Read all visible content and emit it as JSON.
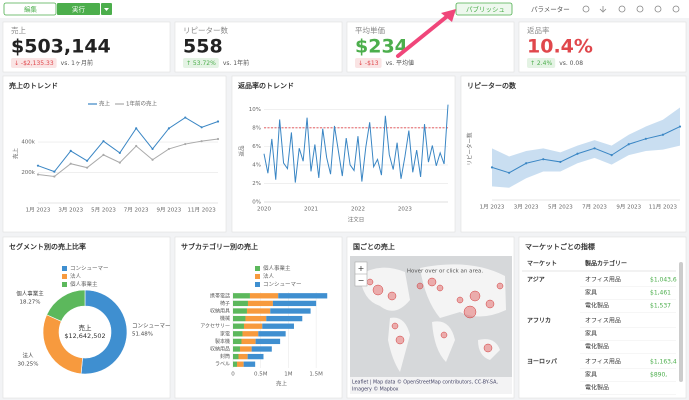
{
  "toolbar": {
    "edit": "編集",
    "run": "実行",
    "publish": "パブリッシュ",
    "parameters": "パラメーター"
  },
  "kpis": [
    {
      "label": "売上",
      "value": "$503,144",
      "value_color": "#222222",
      "delta": "↓ -$2,135.33",
      "delta_color": "#e0474c",
      "compare": "vs. 1ヶ月前"
    },
    {
      "label": "リピーター数",
      "value": "558",
      "value_color": "#222222",
      "delta": "↑ 53.72%",
      "delta_color": "#4cae4c",
      "compare": "vs. 1年前"
    },
    {
      "label": "平均単価",
      "value": "$234",
      "value_color": "#4cae4c",
      "delta": "↓ -$13",
      "delta_color": "#e0474c",
      "compare": "vs. 平均値"
    },
    {
      "label": "返品率",
      "value": "10.4%",
      "value_color": "#e0474c",
      "delta": "↑ 2.4%",
      "delta_color": "#4cae4c",
      "compare": "vs. 0.08"
    }
  ],
  "chart_data": [
    {
      "type": "line",
      "title": "売上のトレンド",
      "ylabel": "売上",
      "legend": true,
      "grid": true,
      "markers": true,
      "categories": [
        "1月 2023",
        null,
        "3月 2023",
        null,
        "5月 2023",
        null,
        "7月 2023",
        null,
        "9月 2023",
        null,
        "11月 2023",
        null
      ],
      "series": [
        {
          "name": "売上",
          "color": "#3a86c4",
          "values": [
            245000,
            206000,
            342000,
            277000,
            406000,
            329000,
            490000,
            355000,
            490000,
            561000,
            497000,
            535000
          ]
        },
        {
          "name": "1年前の売上",
          "color": "#aaaaaa",
          "values": [
            187000,
            174000,
            258000,
            232000,
            316000,
            265000,
            374000,
            284000,
            355000,
            387000,
            406000,
            420000
          ]
        }
      ],
      "ylim": [
        0,
        650000
      ],
      "yticks": [
        {
          "value": 200000,
          "label": "200k"
        },
        {
          "value": 400000,
          "label": "400k"
        }
      ]
    },
    {
      "type": "line",
      "title": "返品率のトレンド",
      "ylabel": "返品",
      "xlabel": "注文日",
      "grid": true,
      "color": "#3a86c4",
      "reference_line": 8,
      "reference_color": "#e0474c",
      "categories": [
        "2020",
        null,
        null,
        null,
        null,
        null,
        null,
        null,
        null,
        null,
        null,
        null,
        "2021",
        null,
        null,
        null,
        null,
        null,
        null,
        null,
        null,
        null,
        null,
        null,
        "2022",
        null,
        null,
        null,
        null,
        null,
        null,
        null,
        null,
        null,
        null,
        null,
        "2023",
        null,
        null,
        null,
        null,
        null,
        null,
        null,
        null,
        null,
        null,
        null
      ],
      "values": [
        5.2,
        3.1,
        6.8,
        2.4,
        8.9,
        4.2,
        3.6,
        7.5,
        2.1,
        5.8,
        4.4,
        9.1,
        3.3,
        6.2,
        2.6,
        7.9,
        4.8,
        3.0,
        8.2,
        5.5,
        2.8,
        6.9,
        4.0,
        3.4,
        7.1,
        2.2,
        5.9,
        8.6,
        3.8,
        4.6,
        2.9,
        9.3,
        5.1,
        3.5,
        6.4,
        2.5,
        4.9,
        7.7,
        3.2,
        5.6,
        2.7,
        8.4,
        4.3,
        6.1,
        3.9,
        5.3,
        4.1,
        10.5
      ],
      "ylim": [
        0,
        11
      ],
      "yticks": [
        {
          "value": 0,
          "label": "0%"
        },
        {
          "value": 2,
          "label": "2%"
        },
        {
          "value": 4,
          "label": "4%"
        },
        {
          "value": 6,
          "label": "6%"
        },
        {
          "value": 8,
          "label": "8%"
        },
        {
          "value": 10,
          "label": "10%"
        }
      ]
    },
    {
      "type": "line",
      "title": "リピーターの数",
      "ylabel": "リピーター数",
      "grid": false,
      "markers": true,
      "color": "#3a86c4",
      "band_color": "#9cc3e6",
      "categories": [
        "1月 2023",
        null,
        "3月 2023",
        null,
        "5月 2023",
        null,
        "7月 2023",
        null,
        "9月 2023",
        null,
        "11月 2023",
        null
      ],
      "values": [
        24,
        20,
        27,
        30,
        28,
        34,
        38,
        33,
        41,
        45,
        48,
        54
      ],
      "ci_upper": [
        38,
        32,
        36,
        38,
        35,
        40,
        44,
        40,
        48,
        54,
        59,
        68
      ],
      "ci_lower": [
        10,
        9,
        16,
        21,
        21,
        27,
        31,
        26,
        33,
        36,
        37,
        40
      ],
      "ylim": [
        0,
        75
      ]
    },
    {
      "type": "pie",
      "title": "セグメント別の売上比率",
      "center_label": "売上",
      "center_value": "$12,642,502",
      "categories": [
        "コンシューマー",
        "法人",
        "個人事業主"
      ],
      "values": [
        51.48,
        30.25,
        18.27
      ],
      "value_labels": [
        "51.48%",
        "30.25%",
        "18.27%"
      ],
      "colors": [
        "#3f8fd0",
        "#f79a3e",
        "#5cb85c"
      ]
    },
    {
      "type": "barh",
      "title": "サブカテゴリー別の売上",
      "xlabel": "売上",
      "grid": true,
      "categories": [
        "携帯電話",
        "椅子",
        "収納用具",
        "機械",
        "アクセサリー",
        "家電",
        "製本機",
        "収納用品",
        "封筒",
        "ラベル"
      ],
      "series": [
        {
          "name": "個人事業主",
          "color": "#5cb85c",
          "values": [
            306000,
            270000,
            252000,
            225000,
            198000,
            171000,
            153000,
            126000,
            99000,
            72000
          ]
        },
        {
          "name": "法人",
          "color": "#f79a3e",
          "values": [
            510000,
            450000,
            420000,
            375000,
            330000,
            285000,
            255000,
            210000,
            165000,
            120000
          ]
        },
        {
          "name": "コンシューマー",
          "color": "#3f8fd0",
          "values": [
            884000,
            780000,
            728000,
            650000,
            572000,
            494000,
            442000,
            364000,
            286000,
            208000
          ]
        }
      ],
      "xlim": [
        0,
        1750000
      ],
      "xticks": [
        0,
        {
          "value": 500000,
          "label": "0.5M"
        },
        {
          "value": 1000000,
          "label": "1M"
        },
        {
          "value": 1500000,
          "label": "1.5M"
        }
      ]
    }
  ],
  "map": {
    "title": "国ごとの売上",
    "zoom_in": "+",
    "zoom_out": "−",
    "hint": "Hover over or click an area.",
    "attribution": "Leaflet | Map data © OpenStreetMap contributors, CC-BY-SA,",
    "imagery": "Imagery © Mapbox"
  },
  "table": {
    "title": "マーケットごとの指標",
    "columns": [
      "マーケット",
      "製品カテゴリー"
    ],
    "groups": [
      {
        "market": "アジア",
        "rows": [
          [
            "オフィス用品",
            "$1,043,6"
          ],
          [
            "家具",
            "$1,461"
          ],
          [
            "電化製品",
            "$1,537"
          ]
        ]
      },
      {
        "market": "アフリカ",
        "rows": [
          [
            "オフィス用品"
          ],
          [
            "家具"
          ],
          [
            "電化製品"
          ]
        ]
      },
      {
        "market": "ヨーロッパ",
        "rows": [
          [
            "オフィス用品",
            "$1,163,4"
          ],
          [
            "家具",
            "$890,"
          ],
          [
            "電化製品"
          ]
        ]
      }
    ]
  }
}
